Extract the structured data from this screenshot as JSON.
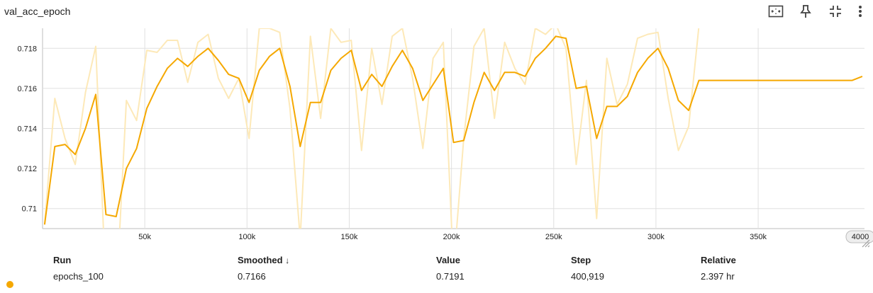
{
  "title": "val_acc_epoch",
  "toolbar": {
    "icons": [
      "fit-domain-icon",
      "pin-icon",
      "collapse-icon",
      "more-vert-icon"
    ]
  },
  "colors": {
    "smoothed": "#f5a800",
    "raw": "#fde9b8",
    "grid": "#e0e0e0"
  },
  "chart_data": {
    "type": "line",
    "title": "val_acc_epoch",
    "xlabel": "",
    "ylabel": "",
    "xlim": [
      0,
      402000
    ],
    "ylim": [
      0.709,
      0.719
    ],
    "x_ticks": [
      50000,
      100000,
      150000,
      200000,
      250000,
      300000,
      350000
    ],
    "x_tick_labels": [
      "50k",
      "100k",
      "150k",
      "200k",
      "250k",
      "300k",
      "350k"
    ],
    "x_last_label": "4000",
    "y_ticks": [
      0.71,
      0.712,
      0.714,
      0.716,
      0.718
    ],
    "y_tick_labels": [
      "0.71",
      "0.712",
      "0.714",
      "0.716",
      "0.718"
    ],
    "grid": true,
    "x": [
      1000,
      6000,
      11000,
      16000,
      21000,
      26000,
      31000,
      36000,
      41000,
      46000,
      51000,
      56000,
      61000,
      66000,
      71000,
      76000,
      81000,
      86000,
      91000,
      96000,
      101000,
      106000,
      111000,
      116000,
      121000,
      126000,
      131000,
      136000,
      141000,
      146000,
      151000,
      156000,
      161000,
      166000,
      171000,
      176000,
      181000,
      186000,
      191000,
      196000,
      201000,
      206000,
      211000,
      216000,
      221000,
      226000,
      231000,
      236000,
      241000,
      246000,
      251000,
      256000,
      261000,
      266000,
      271000,
      276000,
      281000,
      286000,
      291000,
      296000,
      301000,
      306000,
      311000,
      316000,
      321000,
      326000,
      331000,
      336000,
      341000,
      346000,
      351000,
      356000,
      361000,
      366000,
      371000,
      376000,
      381000,
      386000,
      391000,
      396000,
      400919
    ],
    "series": [
      {
        "name": "",
        "values": [
          0.7092,
          0.7131,
          0.7132,
          0.7127,
          0.714,
          0.7157,
          0.7097,
          0.7096,
          0.712,
          0.713,
          0.715,
          0.7161,
          0.717,
          0.7175,
          0.7171,
          0.7176,
          0.718,
          0.7174,
          0.7167,
          0.7165,
          0.7153,
          0.7169,
          0.7176,
          0.718,
          0.7161,
          0.7131,
          0.7153,
          0.7153,
          0.7169,
          0.7175,
          0.7179,
          0.7159,
          0.7167,
          0.7161,
          0.7171,
          0.7179,
          0.717,
          0.7154,
          0.7162,
          0.717,
          0.7133,
          0.7134,
          0.7153,
          0.7168,
          0.7159,
          0.7168,
          0.7168,
          0.7166,
          0.7175,
          0.718,
          0.7186,
          0.7185,
          0.716,
          0.7161,
          0.7135,
          0.7151,
          0.7151,
          0.7156,
          0.7168,
          0.7175,
          0.718,
          0.717,
          0.7154,
          0.7149,
          0.7164,
          0.7164,
          0.7164,
          0.7164,
          0.7164,
          0.7164,
          0.7164,
          0.7164,
          0.7164,
          0.7164,
          0.7164,
          0.7164,
          0.7164,
          0.7164,
          0.7164,
          0.7164,
          0.7166
        ]
      },
      {
        "name": "",
        "values": [
          0.7092,
          0.7155,
          0.7135,
          0.7122,
          0.7158,
          0.7181,
          0.706,
          0.7055,
          0.7154,
          0.7144,
          0.7179,
          0.7178,
          0.7184,
          0.7184,
          0.7163,
          0.7183,
          0.7187,
          0.7165,
          0.7155,
          0.7165,
          0.7135,
          0.719,
          0.719,
          0.7188,
          0.715,
          0.7085,
          0.7186,
          0.7145,
          0.719,
          0.7183,
          0.7184,
          0.7129,
          0.718,
          0.7152,
          0.7186,
          0.719,
          0.7165,
          0.713,
          0.7175,
          0.7183,
          0.707,
          0.7135,
          0.7181,
          0.719,
          0.7145,
          0.7183,
          0.717,
          0.7162,
          0.719,
          0.7187,
          0.7192,
          0.718,
          0.7122,
          0.7164,
          0.7095,
          0.7175,
          0.7152,
          0.7162,
          0.7185,
          0.7187,
          0.7188,
          0.7155,
          0.7129,
          0.7141,
          0.7191,
          0.7191,
          0.7191,
          0.7191,
          0.7191,
          0.7191,
          0.7191,
          0.7191,
          0.7191,
          0.7191,
          0.7191,
          0.7191,
          0.7191,
          0.7191,
          0.7191,
          0.7191,
          0.7191
        ]
      }
    ]
  },
  "table": {
    "headers": {
      "run": "Run",
      "smoothed": "Smoothed",
      "sort_arrow": "↓",
      "value": "Value",
      "step": "Step",
      "relative": "Relative"
    },
    "rows": [
      {
        "run": "epochs_100",
        "smoothed": "0.7166",
        "value": "0.7191",
        "step": "400,919",
        "relative": "2.397 hr"
      }
    ]
  }
}
